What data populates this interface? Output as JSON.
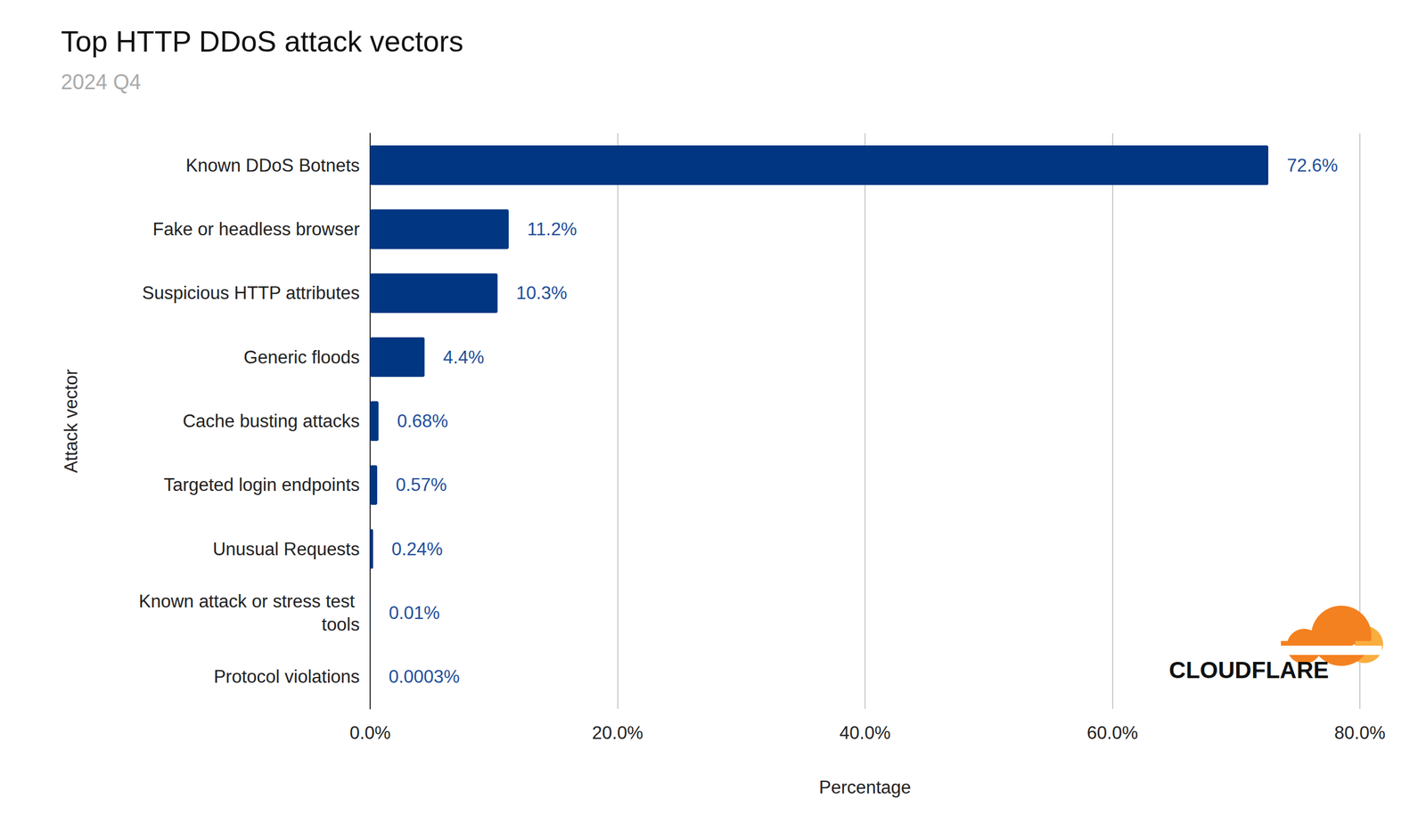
{
  "chart_data": {
    "type": "bar",
    "orientation": "horizontal",
    "title": "Top HTTP DDoS attack vectors",
    "subtitle": "2024 Q4",
    "xlabel": "Percentage",
    "ylabel": "Attack vector",
    "categories": [
      "Known DDoS Botnets",
      "Fake or headless browser",
      "Suspicious HTTP attributes",
      "Generic floods",
      "Cache busting attacks",
      "Targeted login endpoints",
      "Unusual Requests",
      "Known attack or stress test tools",
      "Protocol violations"
    ],
    "values": [
      72.6,
      11.2,
      10.3,
      4.4,
      0.68,
      0.57,
      0.24,
      0.01,
      0.0003
    ],
    "value_labels": [
      "72.6%",
      "11.2%",
      "10.3%",
      "4.4%",
      "0.68%",
      "0.57%",
      "0.24%",
      "0.01%",
      "0.0003%"
    ],
    "data_labels": true,
    "color": "#003682",
    "xlim": [
      0,
      80
    ],
    "xticks": [
      {
        "value": 0,
        "label": "0.0%"
      },
      {
        "value": 20,
        "label": "20.0%"
      },
      {
        "value": 40,
        "label": "40.0%"
      },
      {
        "value": 60,
        "label": "60.0%"
      },
      {
        "value": 80,
        "label": "80.0%"
      }
    ],
    "grid": true,
    "annotations": [
      "CLOUDFLARE"
    ]
  }
}
